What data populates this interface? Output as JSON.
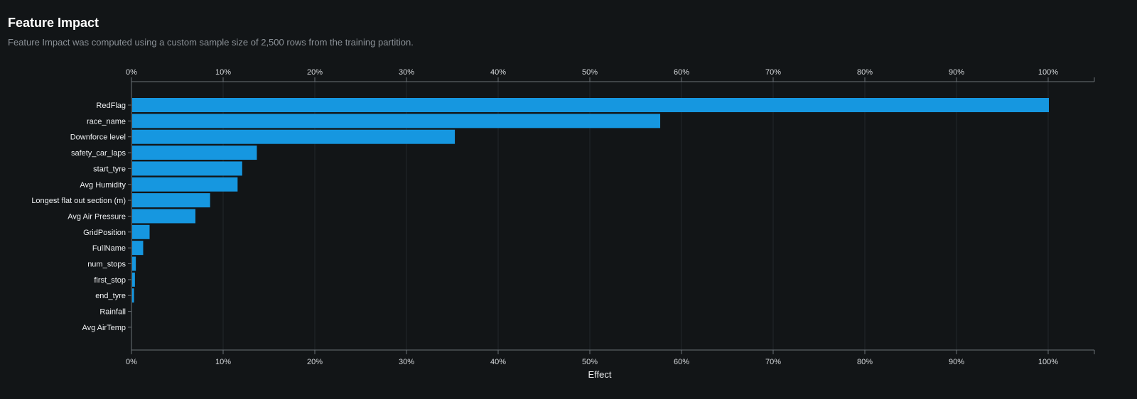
{
  "header": {
    "title": "Feature Impact",
    "subtitle": "Feature Impact was computed using a custom sample size of 2,500 rows from the training partition."
  },
  "colors": {
    "background": "#121517",
    "bar": "#1697e0",
    "axis": "#6b7176",
    "grid": "#22272b"
  },
  "chart_data": {
    "type": "bar",
    "orientation": "horizontal",
    "title": "Feature Impact",
    "xlabel": "Effect",
    "ylabel": "",
    "xlim": [
      0,
      100
    ],
    "ticks": [
      "0%",
      "10%",
      "20%",
      "30%",
      "40%",
      "50%",
      "60%",
      "70%",
      "80%",
      "90%",
      "100%"
    ],
    "tick_values": [
      0,
      10,
      20,
      30,
      40,
      50,
      60,
      70,
      80,
      90,
      100
    ],
    "x_axis_position": "top-and-bottom",
    "grid": true,
    "categories": [
      "RedFlag",
      "race_name",
      "Downforce level",
      "safety_car_laps",
      "start_tyre",
      "Avg Humidity",
      "Longest flat out section (m)",
      "Avg Air Pressure",
      "GridPosition",
      "FullName",
      "num_stops",
      "first_stop",
      "end_tyre",
      "Rainfall",
      "Avg AirTemp"
    ],
    "values": [
      100,
      57.6,
      35.2,
      13.6,
      12.0,
      11.5,
      8.5,
      6.9,
      1.9,
      1.2,
      0.4,
      0.3,
      0.2,
      0.0,
      0.0
    ]
  }
}
